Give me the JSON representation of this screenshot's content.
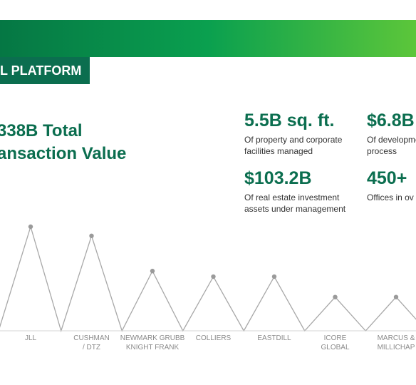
{
  "header": {
    "tag_label": "L PLATFORM"
  },
  "headline": {
    "line1": "338B Total",
    "line2": "ansaction Value"
  },
  "stats": [
    {
      "value": "5.5B sq. ft.",
      "line1": "Of property and corporate",
      "line2": "facilities managed"
    },
    {
      "value": "$6.8B",
      "line1": "Of development",
      "line2": "process"
    },
    {
      "value": "$103.2B",
      "line1": "Of real estate investment",
      "line2": "assets under management"
    },
    {
      "value": "450+",
      "line1": "Offices in ov",
      "line2": ""
    }
  ],
  "colors": {
    "brand": "#0b6e4f",
    "banner_start": "#057744",
    "banner_end": "#5cc63a",
    "line": "#a8a8a8",
    "point": "#9a9a9a"
  },
  "chart_data": {
    "type": "line",
    "categories": [
      [
        "JLL"
      ],
      [
        "CUSHMAN",
        "/ DTZ"
      ],
      [
        "NEWMARK GRUBB",
        "KNIGHT FRANK"
      ],
      [
        "COLLIERS"
      ],
      [
        "EASTDILL"
      ],
      [
        "ICORE",
        "GLOBAL"
      ],
      [
        "MARCUS &",
        "MILLICHAP"
      ]
    ],
    "values": [
      148,
      135,
      85,
      77,
      77,
      48,
      48
    ],
    "ylim": [
      0,
      150
    ],
    "grid": false,
    "legend": "none",
    "title": "",
    "xlabel": "",
    "ylabel": ""
  }
}
